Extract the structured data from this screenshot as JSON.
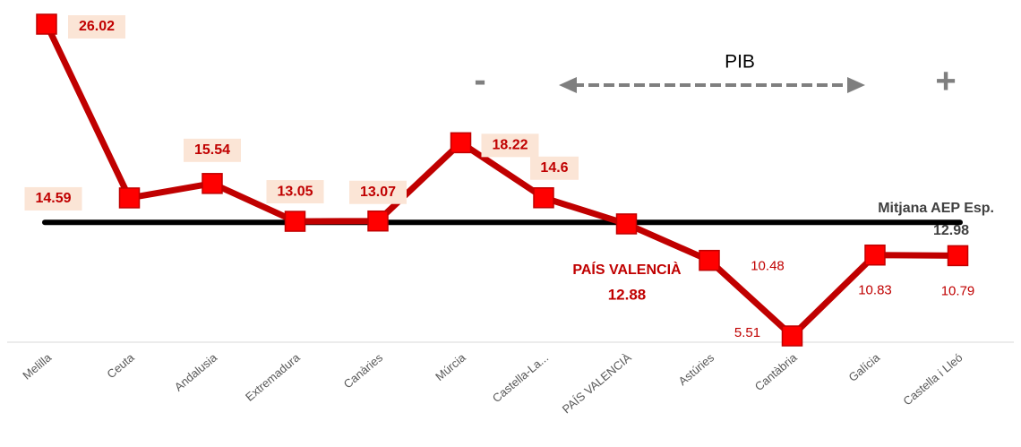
{
  "chart_data": {
    "type": "line",
    "categories": [
      "Melilla",
      "Ceuta",
      "Andalusia",
      "Extremadura",
      "Canàries",
      "Múrcia",
      "Castella-La...",
      "PAÍS VALENCIÀ",
      "Astúries",
      "Cantàbria",
      "Galícia",
      "Castella i Lleó"
    ],
    "series": [
      {
        "color": "#c00000",
        "values": [
          26.02,
          14.59,
          15.54,
          13.05,
          13.07,
          18.22,
          14.6,
          12.88,
          10.48,
          5.51,
          10.83,
          10.79
        ]
      }
    ],
    "average": {
      "label": "Mitjana AEP Esp.",
      "value": 12.98
    },
    "annotations": {
      "pib": "PIB",
      "minus": "-",
      "plus": "+"
    }
  }
}
